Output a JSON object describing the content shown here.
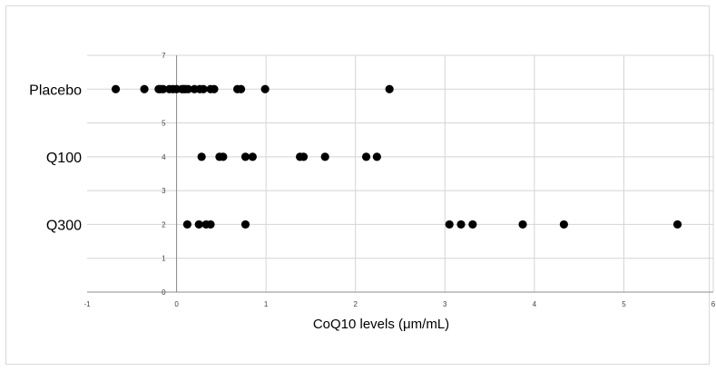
{
  "chart_data": {
    "type": "scatter",
    "title": "",
    "xlabel": "CoQ10 levels (μm/mL)",
    "ylabel": "",
    "xlim": [
      -1,
      6
    ],
    "ylim": [
      0,
      7
    ],
    "x_ticks": [
      "-1",
      "0",
      "1",
      "2",
      "3",
      "4",
      "5",
      "6"
    ],
    "y_ticks": [
      "0",
      "1",
      "2",
      "3",
      "4",
      "5",
      "6",
      "7"
    ],
    "grid": true,
    "legend": "none",
    "marker_color": "#000000",
    "category_labels": [
      {
        "label": "Placebo",
        "y": 6
      },
      {
        "label": "Q100",
        "y": 4
      },
      {
        "label": "Q300",
        "y": 2
      }
    ],
    "series": [
      {
        "y": 6,
        "x": [
          -0.68,
          -0.36,
          -0.2,
          -0.18,
          -0.15,
          -0.08,
          -0.04,
          0.0,
          0.06,
          0.08,
          0.1,
          0.13,
          0.2,
          0.26,
          0.3,
          0.38,
          0.42,
          0.68,
          0.72,
          0.99,
          2.38
        ]
      },
      {
        "y": 4,
        "x": [
          0.28,
          0.48,
          0.52,
          0.77,
          0.85,
          1.38,
          1.42,
          1.66,
          2.12,
          2.24
        ]
      },
      {
        "y": 2,
        "x": [
          0.12,
          0.25,
          0.33,
          0.38,
          0.77,
          3.05,
          3.18,
          3.31,
          3.87,
          4.33,
          5.6
        ]
      }
    ]
  }
}
